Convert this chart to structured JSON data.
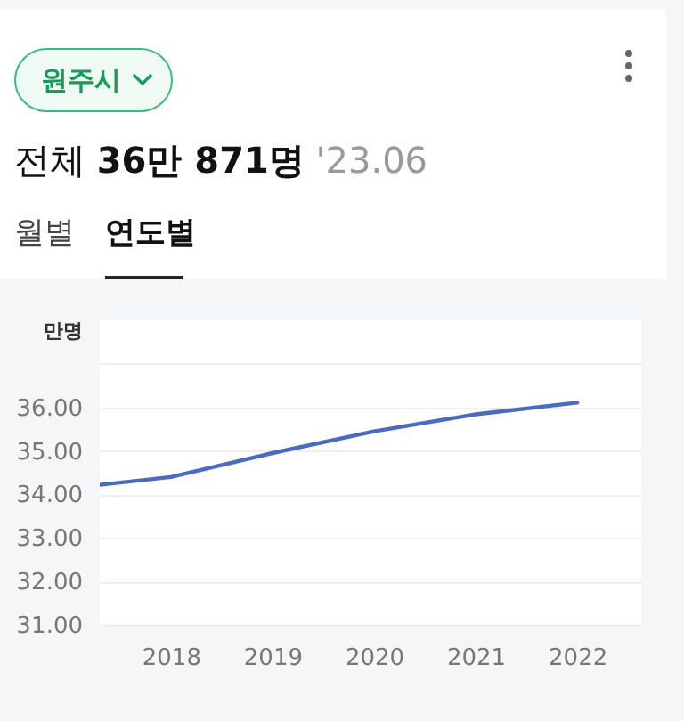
{
  "chart_data": {
    "type": "line",
    "title": "전체 36만 871명",
    "subtitle": "'23.06",
    "ylabel": "만명",
    "annotations": [
      "원주시",
      "월별",
      "연도별"
    ],
    "x": [
      2017.3,
      2018,
      2019,
      2020,
      2021,
      2022
    ],
    "series": [
      {
        "color": "#4a6cc0",
        "values": [
          34.22,
          34.4,
          34.95,
          35.45,
          35.84,
          36.11
        ]
      }
    ],
    "xlim": [
      2017.3,
      2022.63
    ],
    "xticks": [
      2018,
      2019,
      2020,
      2021,
      2022
    ],
    "ylim": [
      31,
      38
    ],
    "yticks": [
      {
        "value": 31,
        "label": "31.00"
      },
      {
        "value": 32,
        "label": "32.00"
      },
      {
        "value": 33,
        "label": "33.00"
      },
      {
        "value": 34,
        "label": "34.00"
      },
      {
        "value": 35,
        "label": "35.00"
      },
      {
        "value": 36,
        "label": "36.00"
      },
      {
        "value": 37,
        "label": null
      }
    ],
    "grid": "y",
    "marker": "none",
    "line_style": "solid",
    "legend": false
  }
}
